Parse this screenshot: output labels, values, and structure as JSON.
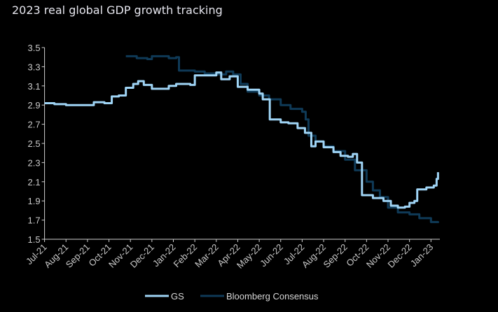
{
  "chart_data": {
    "type": "line",
    "title": "2023 real global GDP growth tracking",
    "xlabel": "",
    "ylabel": "",
    "ylim": [
      1.5,
      3.5
    ],
    "yticks": [
      "1.5",
      "1.7",
      "1.9",
      "2.1",
      "2.3",
      "2.5",
      "2.7",
      "2.9",
      "3.1",
      "3.3",
      "3.5"
    ],
    "xticks": [
      "Jul-21",
      "Aug-21",
      "Sep-21",
      "Oct-21",
      "Nov-21",
      "Dec-21",
      "Jan-22",
      "Feb-22",
      "Mar-22",
      "Apr-22",
      "May-22",
      "Jun-22",
      "Jul-22",
      "Aug-22",
      "Sep-22",
      "Oct-22",
      "Nov-22",
      "Dec-22",
      "Jan-23"
    ],
    "grid": false,
    "legend_position": "bottom",
    "series": [
      {
        "name": "GS",
        "color": "#9fd4f5",
        "points": [
          [
            "2021-07-01",
            2.92
          ],
          [
            "2021-07-15",
            2.91
          ],
          [
            "2021-08-01",
            2.9
          ],
          [
            "2021-08-15",
            2.9
          ],
          [
            "2021-09-01",
            2.9
          ],
          [
            "2021-09-10",
            2.93
          ],
          [
            "2021-09-25",
            2.92
          ],
          [
            "2021-10-05",
            2.99
          ],
          [
            "2021-10-15",
            3.0
          ],
          [
            "2021-10-25",
            3.08
          ],
          [
            "2021-11-05",
            3.12
          ],
          [
            "2021-11-12",
            3.15
          ],
          [
            "2021-11-20",
            3.11
          ],
          [
            "2021-12-01",
            3.07
          ],
          [
            "2021-12-15",
            3.07
          ],
          [
            "2021-12-25",
            3.1
          ],
          [
            "2022-01-05",
            3.12
          ],
          [
            "2022-01-25",
            3.11
          ],
          [
            "2022-02-01",
            3.21
          ],
          [
            "2022-02-15",
            3.21
          ],
          [
            "2022-03-01",
            3.24
          ],
          [
            "2022-03-08",
            3.17
          ],
          [
            "2022-03-20",
            3.2
          ],
          [
            "2022-04-01",
            3.09
          ],
          [
            "2022-04-15",
            3.06
          ],
          [
            "2022-05-01",
            3.02
          ],
          [
            "2022-05-06",
            2.96
          ],
          [
            "2022-05-12",
            2.96
          ],
          [
            "2022-05-16",
            2.75
          ],
          [
            "2022-06-01",
            2.72
          ],
          [
            "2022-06-12",
            2.71
          ],
          [
            "2022-06-25",
            2.66
          ],
          [
            "2022-07-05",
            2.61
          ],
          [
            "2022-07-14",
            2.47
          ],
          [
            "2022-07-20",
            2.52
          ],
          [
            "2022-08-01",
            2.46
          ],
          [
            "2022-08-15",
            2.41
          ],
          [
            "2022-08-25",
            2.37
          ],
          [
            "2022-09-05",
            2.36
          ],
          [
            "2022-09-12",
            2.39
          ],
          [
            "2022-09-18",
            2.3
          ],
          [
            "2022-09-25",
            1.96
          ],
          [
            "2022-10-10",
            1.93
          ],
          [
            "2022-10-25",
            1.9
          ],
          [
            "2022-11-05",
            1.85
          ],
          [
            "2022-11-15",
            1.83
          ],
          [
            "2022-11-25",
            1.84
          ],
          [
            "2022-12-01",
            1.88
          ],
          [
            "2022-12-08",
            1.9
          ],
          [
            "2022-12-12",
            2.02
          ],
          [
            "2022-12-25",
            2.04
          ],
          [
            "2023-01-05",
            2.06
          ],
          [
            "2023-01-09",
            2.13
          ],
          [
            "2023-01-11",
            2.2
          ]
        ]
      },
      {
        "name": "Bloomberg Consensus",
        "color": "#0f3a57",
        "points": [
          [
            "2021-10-25",
            3.41
          ],
          [
            "2021-11-01",
            3.41
          ],
          [
            "2021-11-10",
            3.39
          ],
          [
            "2021-11-25",
            3.38
          ],
          [
            "2021-12-01",
            3.41
          ],
          [
            "2021-12-15",
            3.41
          ],
          [
            "2021-12-25",
            3.39
          ],
          [
            "2022-01-05",
            3.4
          ],
          [
            "2022-01-09",
            3.26
          ],
          [
            "2022-02-01",
            3.25
          ],
          [
            "2022-02-15",
            3.23
          ],
          [
            "2022-03-01",
            3.22
          ],
          [
            "2022-03-15",
            3.25
          ],
          [
            "2022-03-25",
            3.22
          ],
          [
            "2022-04-05",
            3.12
          ],
          [
            "2022-04-15",
            3.04
          ],
          [
            "2022-05-01",
            3.0
          ],
          [
            "2022-05-15",
            2.96
          ],
          [
            "2022-06-01",
            2.9
          ],
          [
            "2022-06-15",
            2.86
          ],
          [
            "2022-07-01",
            2.83
          ],
          [
            "2022-07-06",
            2.75
          ],
          [
            "2022-07-10",
            2.58
          ],
          [
            "2022-07-20",
            2.52
          ],
          [
            "2022-08-01",
            2.47
          ],
          [
            "2022-08-15",
            2.42
          ],
          [
            "2022-09-01",
            2.33
          ],
          [
            "2022-09-15",
            2.22
          ],
          [
            "2022-10-01",
            2.1
          ],
          [
            "2022-10-10",
            2.01
          ],
          [
            "2022-10-20",
            1.94
          ],
          [
            "2022-11-01",
            1.83
          ],
          [
            "2022-11-15",
            1.78
          ],
          [
            "2022-12-01",
            1.76
          ],
          [
            "2022-12-15",
            1.72
          ],
          [
            "2023-01-01",
            1.68
          ],
          [
            "2023-01-11",
            1.67
          ]
        ]
      }
    ]
  }
}
